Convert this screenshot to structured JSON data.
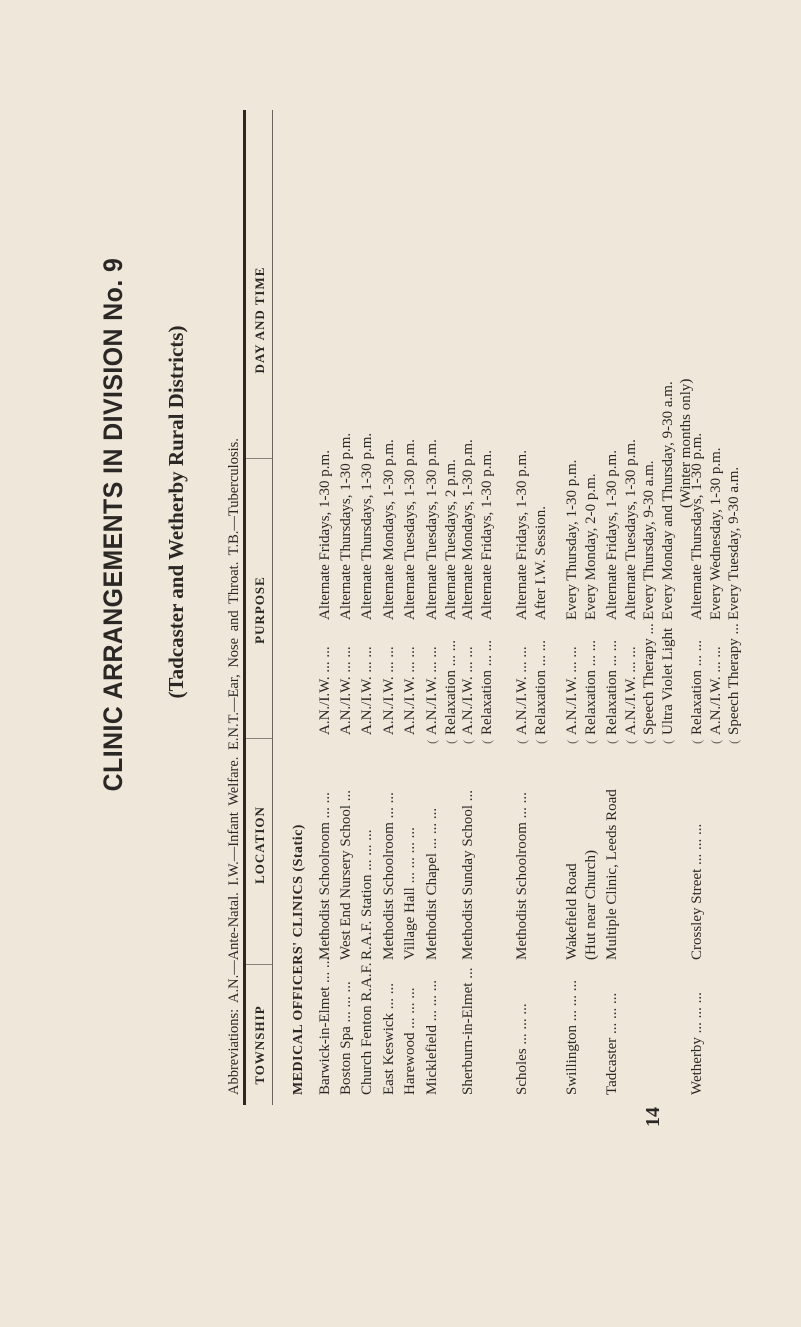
{
  "title": "CLINIC ARRANGEMENTS IN DIVISION No. 9",
  "subtitle": "(Tadcaster and Wetherby Rural Districts)",
  "abbreviations": "Abbreviations: A.N.—Ante-Natal. I.W.—Infant Welfare. E.N.T.—Ear, Nose and Throat. T.B.—Tuberculosis.",
  "columns": [
    "TOWNSHIP",
    "LOCATION",
    "PURPOSE",
    "DAY AND TIME"
  ],
  "section": "MEDICAL OFFICERS' CLINICS (Static)",
  "rows": [
    {
      "township": [
        "Barwick-in-Elmet ... ..."
      ],
      "location": [
        "Methodist Schoolroom ... ..."
      ],
      "purpose": [
        "A.N./I.W. ... ..."
      ],
      "day": [
        "Alternate Fridays, 1-30 p.m."
      ]
    },
    {
      "township": [
        "Boston Spa ... ... ..."
      ],
      "location": [
        "West End Nursery School ..."
      ],
      "purpose": [
        "A.N./I.W. ... ..."
      ],
      "day": [
        "Alternate Thursdays, 1-30 p.m."
      ]
    },
    {
      "township": [
        "Church Fenton R.A.F."
      ],
      "location": [
        "R.A.F. Station ... ... ..."
      ],
      "purpose": [
        "A.N./I.W. ... ..."
      ],
      "day": [
        "Alternate Thursdays, 1-30 p.m."
      ]
    },
    {
      "township": [
        "East Keswick ... ..."
      ],
      "location": [
        "Methodist Schoolroom ... ..."
      ],
      "purpose": [
        "A.N./I.W. ... ..."
      ],
      "day": [
        "Alternate Mondays, 1-30 p.m."
      ]
    },
    {
      "township": [
        "Harewood ... ... ..."
      ],
      "location": [
        "Village Hall ... ... ... ..."
      ],
      "purpose": [
        "A.N./I.W. ... ..."
      ],
      "day": [
        "Alternate Tuesdays, 1-30 p.m."
      ]
    },
    {
      "township": [
        "Micklefield ... ... ..."
      ],
      "location": [
        "Methodist Chapel ... ... ..."
      ],
      "purpose": [
        "A.N./I.W. ... ...",
        "Relaxation ... ..."
      ],
      "day": [
        "Alternate Tuesdays, 1-30 p.m.",
        "Alternate Tuesdays, 2 p.m."
      ]
    },
    {
      "township": [
        "Sherburn-in-Elmet ..."
      ],
      "location": [
        "Methodist Sunday School ..."
      ],
      "purpose": [
        "A.N./I.W. ... ...",
        "Relaxation ... ..."
      ],
      "day": [
        "Alternate Mondays, 1-30 p.m.",
        "Alternate Fridays, 1-30 p.m."
      ]
    },
    {
      "township": [
        "Scholes ... ... ..."
      ],
      "location": [
        "Methodist Schoolroom ... ..."
      ],
      "purpose": [
        "A.N./I.W. ... ...",
        "Relaxation ... ..."
      ],
      "day": [
        "Alternate Fridays, 1-30 p.m.",
        "After I.W. Session."
      ]
    },
    {
      "township": [
        "Swillington ... ... ..."
      ],
      "location": [
        "Wakefield Road",
        "(Hut near Church)"
      ],
      "purpose": [
        "A.N./I.W. ... ...",
        "Relaxation ... ..."
      ],
      "day": [
        "Every Thursday, 1-30 p.m.",
        "Every Monday, 2-0 p.m."
      ]
    },
    {
      "township": [
        "Tadcaster ... ... ..."
      ],
      "location": [
        "Multiple Clinic, Leeds Road"
      ],
      "purpose": [
        "Relaxation ... ...",
        "A.N./I.W. ... ...",
        "Speech Therapy ...",
        "Ultra Violet Light"
      ],
      "day": [
        "Alternate Fridays, 1-30 p.m.",
        "Alternate Tuesdays, 1-30 p.m.",
        "Every Thursday, 9-30 a.m.",
        "Every Monday and Thursday, 9-30 a.m."
      ],
      "day_note": "(Winter months only)"
    },
    {
      "township": [
        "Wetherby ... ... ..."
      ],
      "location": [
        "Crossley Street ... ... ..."
      ],
      "purpose": [
        "Relaxation ... ...",
        "A.N./I.W. ... ...",
        "Speech Therapy ..."
      ],
      "day": [
        "Alternate Thursdays, 1-30 p.m.",
        "Every Wednesday, 1-30 p.m.",
        "Every Tuesday, 9-30 a.m."
      ]
    }
  ],
  "page_number": "14"
}
